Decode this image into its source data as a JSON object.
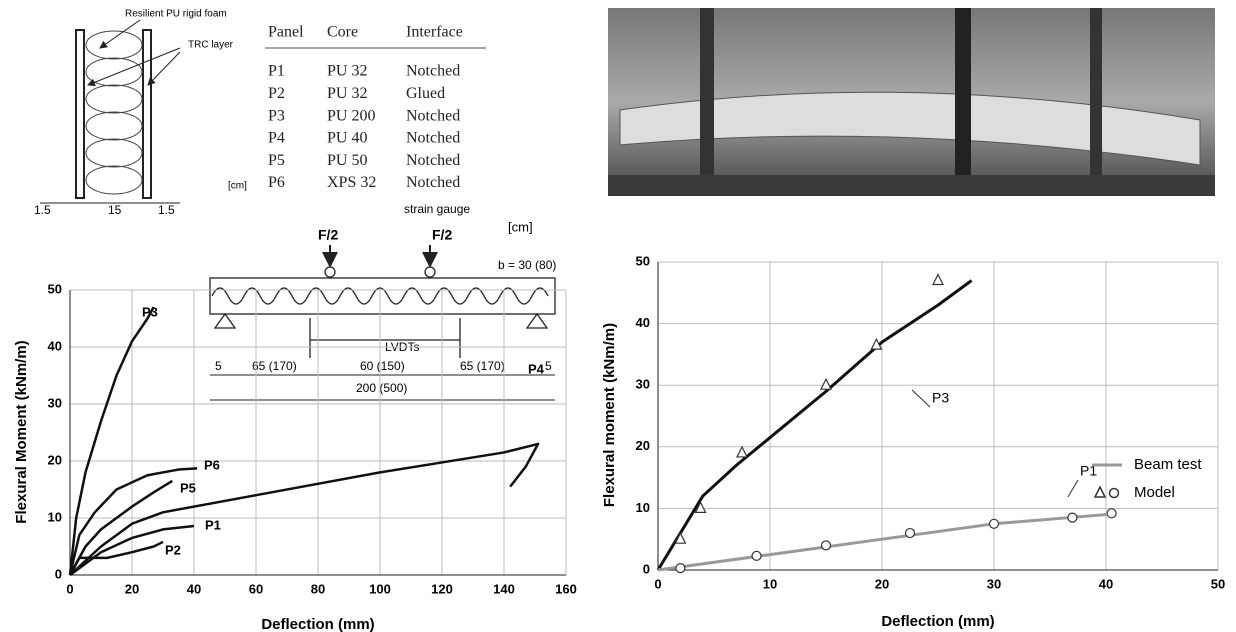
{
  "panel_section": {
    "foam_label": "Resilient PU rigid foam",
    "layer_label": "TRC layer",
    "unit": "[cm]",
    "dims": [
      "1.5",
      "15",
      "1.5"
    ]
  },
  "table": {
    "header": [
      "Panel",
      "Core",
      "Interface"
    ],
    "rows": [
      [
        "P1",
        "PU 32",
        "Notched"
      ],
      [
        "P2",
        "PU 32",
        "Glued"
      ],
      [
        "P3",
        "PU 200",
        "Notched"
      ],
      [
        "P4",
        "PU 40",
        "Notched"
      ],
      [
        "P5",
        "PU 50",
        "Notched"
      ],
      [
        "P6",
        "XPS 32",
        "Notched"
      ]
    ]
  },
  "beam_diagram": {
    "loads": [
      "F/2",
      "F/2"
    ],
    "gauge": "strain gauge",
    "unit": "[cm]",
    "width": "b = 30 (80)",
    "lvdt": "LVDTs",
    "spans": [
      "5",
      "65 (170)",
      "60 (150)",
      "65 (170)",
      "5"
    ],
    "total": "200 (500)"
  },
  "chart_data": [
    {
      "type": "line",
      "x_label": "Deflection (mm)",
      "y_label": "Flexural Moment (kNm/m)",
      "xlim": [
        0,
        160
      ],
      "ylim": [
        0,
        50
      ],
      "xticks": [
        0,
        20,
        40,
        60,
        80,
        100,
        120,
        140,
        160
      ],
      "yticks": [
        0,
        10,
        20,
        30,
        40,
        50
      ],
      "grid": true,
      "series": [
        {
          "name": "P1",
          "color": "#111111",
          "x": [
            0,
            5,
            10,
            20,
            30,
            40
          ],
          "values": [
            0,
            2,
            4,
            6.5,
            8,
            8.6
          ]
        },
        {
          "name": "P2",
          "color": "#111111",
          "x": [
            0,
            3,
            12,
            20,
            27,
            30
          ],
          "values": [
            0,
            3,
            3,
            4,
            5,
            5.8
          ]
        },
        {
          "name": "P3",
          "color": "#111111",
          "x": [
            0,
            2,
            5,
            10,
            15,
            20,
            25,
            27
          ],
          "values": [
            0,
            10,
            18,
            27,
            35,
            41,
            45,
            47
          ]
        },
        {
          "name": "P4",
          "color": "#111111",
          "x": [
            0,
            10,
            20,
            30,
            60,
            100,
            140,
            151,
            147,
            142
          ],
          "values": [
            0,
            5,
            9,
            11,
            14,
            18,
            21.5,
            23,
            19,
            15.5
          ]
        },
        {
          "name": "P5",
          "color": "#111111",
          "x": [
            0,
            5,
            10,
            20,
            27,
            33
          ],
          "values": [
            0,
            5,
            8,
            12,
            14.5,
            16.5
          ]
        },
        {
          "name": "P6",
          "color": "#111111",
          "x": [
            0,
            3,
            8,
            15,
            25,
            35,
            41
          ],
          "values": [
            0,
            7,
            11,
            15,
            17.5,
            18.5,
            18.7
          ]
        }
      ]
    },
    {
      "type": "line",
      "x_label": "Deflection (mm)",
      "y_label": "Flexural moment (kNm/m)",
      "xlim": [
        0,
        50
      ],
      "ylim": [
        0,
        50
      ],
      "xticks": [
        0,
        10,
        20,
        30,
        40,
        50
      ],
      "yticks": [
        0,
        10,
        20,
        30,
        40,
        50
      ],
      "grid": true,
      "series": [
        {
          "name": "Beam test",
          "curves": [
            {
              "label": "P3",
              "color": "#111111",
              "x": [
                0,
                2,
                4,
                7,
                10,
                15,
                20,
                25,
                28
              ],
              "values": [
                0,
                6,
                12,
                17,
                21.5,
                29,
                37,
                43,
                47
              ]
            },
            {
              "label": "P1",
              "color": "#999999",
              "x": [
                0,
                10,
                20,
                30,
                40
              ],
              "values": [
                0,
                2.5,
                5,
                7.5,
                9
              ]
            }
          ]
        },
        {
          "name": "Model",
          "curves": [
            {
              "marker": "triangle",
              "x": [
                2,
                3.8,
                7.5,
                15,
                19.5,
                25
              ],
              "values": [
                5,
                10,
                19,
                30,
                36.5,
                47
              ]
            },
            {
              "marker": "circle",
              "x": [
                2,
                8.8,
                15,
                22.5,
                30,
                37,
                40.5
              ],
              "values": [
                0.3,
                2.3,
                4,
                6,
                7.5,
                8.5,
                9.2
              ]
            }
          ]
        }
      ]
    }
  ]
}
